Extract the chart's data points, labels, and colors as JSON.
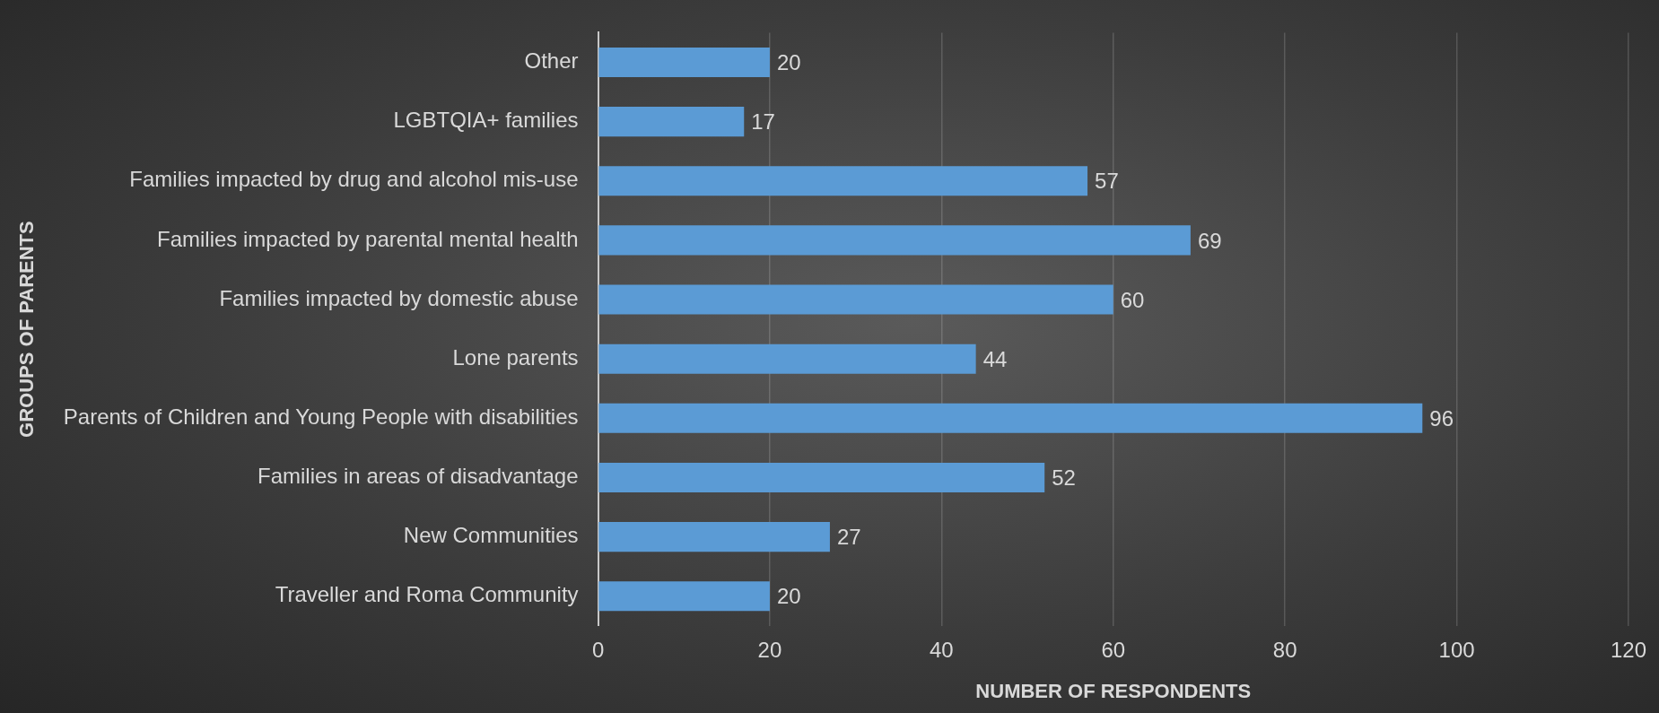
{
  "chart_data": {
    "type": "bar",
    "orientation": "horizontal",
    "xlabel": "NUMBER OF RESPONDENTS",
    "ylabel": "GROUPS OF PARENTS",
    "categories": [
      "Other",
      "LGBTQIA+ families",
      "Families impacted by drug and alcohol mis-use",
      "Families impacted by parental mental health",
      "Families impacted by domestic abuse",
      "Lone parents",
      "Parents of Children and Young People with disabilities",
      "Families in areas of disadvantage",
      "New Communities",
      "Traveller and Roma Community"
    ],
    "values": [
      20,
      17,
      57,
      69,
      60,
      44,
      96,
      52,
      27,
      20
    ],
    "color": "#5b9bd5",
    "xlim": [
      0,
      120
    ],
    "xticks": [
      0,
      20,
      40,
      60,
      80,
      100,
      120
    ],
    "grid": "x",
    "data_labels": true,
    "legend": false
  }
}
